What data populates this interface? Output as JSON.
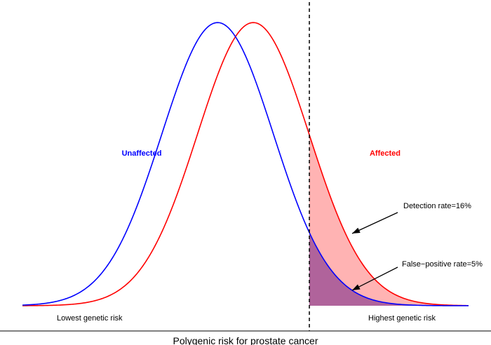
{
  "chart_data": {
    "type": "area",
    "title": "",
    "xlabel": "Polygenic risk for prostate cancer",
    "ylabel": "",
    "x_range": [
      -3.5,
      4.5
    ],
    "ylim": [
      0,
      0.41
    ],
    "grid": false,
    "legend": "none",
    "series": [
      {
        "name": "Unaffected",
        "distribution": "normal",
        "mean": 0.0,
        "sd": 1.0,
        "color": "#0000ff"
      },
      {
        "name": "Affected",
        "distribution": "normal",
        "mean": 0.64,
        "sd": 1.0,
        "color": "#ff0000"
      }
    ],
    "threshold": {
      "x": 1.645,
      "style": "dashed",
      "color": "#000000"
    },
    "shaded_regions": [
      {
        "name": "Detection rate",
        "series": "Affected",
        "from": 1.645,
        "color": "#ff9999",
        "opacity": 0.75
      },
      {
        "name": "False-positive rate",
        "series": "Unaffected",
        "from": 1.645,
        "color": "#7b2d8b",
        "opacity": 0.6
      }
    ],
    "annotations": {
      "detection": "Detection rate=16%",
      "false_positive": "False−positive rate=5%",
      "lowest": "Lowest genetic risk",
      "highest": "Highest genetic risk"
    }
  }
}
